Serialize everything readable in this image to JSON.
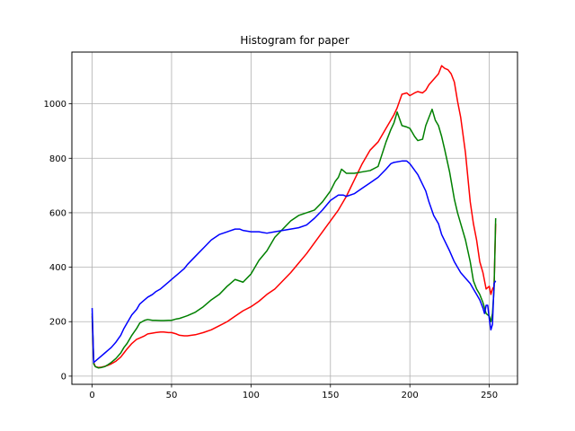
{
  "chart_data": {
    "type": "line",
    "title": "Histogram for paper",
    "xlabel": "",
    "ylabel": "",
    "xlim": [
      -12.75,
      267.75
    ],
    "ylim": [
      -30,
      1190
    ],
    "xticks": [
      0,
      50,
      100,
      150,
      200,
      250
    ],
    "yticks": [
      0,
      200,
      400,
      600,
      800,
      1000
    ],
    "grid": true,
    "legend": "none",
    "series": [
      {
        "color": "#ff0000",
        "x": [
          0,
          1,
          2,
          4,
          6,
          8,
          10,
          12,
          15,
          18,
          20,
          22,
          25,
          28,
          30,
          33,
          35,
          38,
          40,
          43,
          45,
          48,
          50,
          53,
          55,
          58,
          60,
          65,
          70,
          75,
          80,
          85,
          90,
          95,
          100,
          105,
          110,
          115,
          120,
          125,
          130,
          135,
          140,
          145,
          150,
          155,
          160,
          165,
          170,
          175,
          180,
          185,
          188,
          190,
          192,
          195,
          198,
          200,
          203,
          205,
          208,
          210,
          212,
          215,
          218,
          220,
          222,
          224,
          226,
          228,
          230,
          232,
          235,
          238,
          240,
          242,
          244,
          246,
          247,
          248,
          250,
          251,
          252,
          253,
          254
        ],
        "y": [
          220,
          50,
          35,
          32,
          33,
          36,
          40,
          45,
          55,
          70,
          85,
          100,
          120,
          135,
          140,
          148,
          155,
          158,
          160,
          162,
          162,
          160,
          160,
          155,
          150,
          148,
          148,
          152,
          160,
          170,
          185,
          200,
          220,
          240,
          255,
          275,
          300,
          320,
          350,
          380,
          415,
          450,
          490,
          530,
          570,
          610,
          660,
          720,
          780,
          830,
          860,
          910,
          940,
          960,
          985,
          1035,
          1040,
          1030,
          1040,
          1045,
          1040,
          1050,
          1070,
          1090,
          1110,
          1140,
          1130,
          1125,
          1110,
          1080,
          1010,
          950,
          820,
          640,
          560,
          500,
          420,
          380,
          350,
          320,
          330,
          300,
          320,
          330,
          560
        ]
      },
      {
        "color": "#008000",
        "x": [
          0,
          1,
          2,
          4,
          6,
          8,
          10,
          12,
          15,
          18,
          20,
          22,
          25,
          28,
          30,
          33,
          35,
          38,
          40,
          43,
          45,
          48,
          50,
          53,
          55,
          58,
          60,
          65,
          70,
          75,
          80,
          85,
          90,
          95,
          100,
          105,
          110,
          115,
          120,
          125,
          130,
          135,
          140,
          145,
          150,
          153,
          155,
          157,
          160,
          165,
          170,
          175,
          180,
          185,
          188,
          190,
          192,
          195,
          198,
          200,
          203,
          205,
          208,
          210,
          212,
          214,
          216,
          218,
          220,
          222,
          225,
          228,
          230,
          232,
          235,
          238,
          240,
          242,
          244,
          246,
          247,
          248,
          250,
          251,
          252,
          253,
          254
        ],
        "y": [
          230,
          45,
          35,
          30,
          32,
          35,
          42,
          50,
          65,
          85,
          105,
          120,
          150,
          175,
          195,
          205,
          208,
          205,
          205,
          204,
          204,
          205,
          205,
          210,
          212,
          218,
          222,
          235,
          255,
          280,
          300,
          330,
          355,
          345,
          375,
          425,
          460,
          510,
          540,
          570,
          590,
          600,
          610,
          640,
          680,
          715,
          730,
          760,
          745,
          745,
          750,
          755,
          770,
          860,
          905,
          930,
          970,
          920,
          915,
          910,
          880,
          865,
          870,
          920,
          950,
          980,
          940,
          920,
          880,
          830,
          750,
          650,
          600,
          560,
          500,
          420,
          350,
          320,
          300,
          270,
          250,
          230,
          220,
          200,
          230,
          320,
          580
        ]
      },
      {
        "color": "#0000ff",
        "x": [
          0,
          1,
          2,
          4,
          6,
          8,
          10,
          12,
          15,
          18,
          20,
          22,
          25,
          28,
          30,
          33,
          35,
          38,
          40,
          43,
          45,
          48,
          50,
          53,
          55,
          58,
          60,
          65,
          70,
          75,
          80,
          85,
          90,
          93,
          95,
          100,
          105,
          110,
          115,
          120,
          125,
          130,
          135,
          140,
          145,
          150,
          155,
          158,
          160,
          165,
          170,
          175,
          180,
          185,
          188,
          190,
          195,
          198,
          200,
          205,
          210,
          212,
          215,
          218,
          220,
          225,
          228,
          230,
          232,
          235,
          238,
          240,
          242,
          244,
          246,
          247,
          248,
          249,
          250,
          251,
          252,
          253,
          254
        ],
        "y": [
          250,
          50,
          55,
          65,
          75,
          85,
          95,
          105,
          125,
          150,
          175,
          195,
          225,
          245,
          265,
          280,
          290,
          300,
          310,
          320,
          330,
          345,
          355,
          370,
          380,
          395,
          410,
          440,
          470,
          500,
          520,
          530,
          540,
          540,
          535,
          530,
          530,
          525,
          530,
          535,
          540,
          545,
          555,
          580,
          610,
          645,
          665,
          665,
          660,
          670,
          690,
          710,
          730,
          760,
          780,
          785,
          790,
          790,
          780,
          740,
          680,
          640,
          590,
          560,
          520,
          460,
          420,
          400,
          380,
          360,
          340,
          320,
          300,
          280,
          250,
          230,
          260,
          260,
          210,
          170,
          190,
          340,
          350
        ]
      }
    ]
  }
}
